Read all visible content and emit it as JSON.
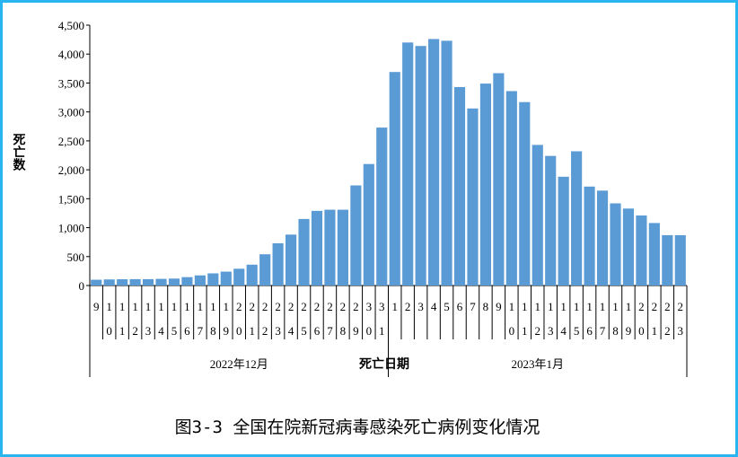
{
  "chart_data": {
    "type": "bar",
    "caption": "图3-3 全国在院新冠病毒感染死亡病例变化情况",
    "y_label": "死亡数",
    "x_label": "死亡日期",
    "groups": [
      "2022年12月",
      "2023年1月"
    ],
    "categories": [
      "9",
      "10",
      "11",
      "12",
      "13",
      "14",
      "15",
      "16",
      "17",
      "18",
      "19",
      "20",
      "21",
      "22",
      "23",
      "24",
      "25",
      "26",
      "27",
      "28",
      "29",
      "30",
      "31",
      "1",
      "2",
      "3",
      "4",
      "5",
      "6",
      "7",
      "8",
      "9",
      "10",
      "11",
      "12",
      "13",
      "14",
      "15",
      "16",
      "17",
      "18",
      "19",
      "20",
      "21",
      "22",
      "23"
    ],
    "values": [
      100,
      105,
      108,
      110,
      110,
      115,
      120,
      145,
      175,
      210,
      240,
      290,
      360,
      540,
      730,
      880,
      1150,
      1290,
      1310,
      1310,
      1730,
      2100,
      2730,
      3690,
      4200,
      4140,
      4260,
      4230,
      3430,
      3060,
      3490,
      3670,
      3360,
      3170,
      2430,
      2240,
      1880,
      2320,
      1710,
      1640,
      1420,
      1330,
      1210,
      1080,
      870,
      870
    ],
    "color": "#5b9bd5",
    "ylim": [
      0,
      4500
    ],
    "yticks": [
      0,
      500,
      {
        "value": 1000,
        "label": "1,000"
      },
      {
        "value": 1500,
        "label": "1,500"
      },
      {
        "value": 2000,
        "label": "2,000"
      },
      {
        "value": 2500,
        "label": "2,500"
      },
      {
        "value": 3000,
        "label": "3,000"
      },
      {
        "value": 3500,
        "label": "3,500"
      },
      {
        "value": 4000,
        "label": "4,000"
      },
      {
        "value": 4500,
        "label": "4,500"
      }
    ]
  }
}
